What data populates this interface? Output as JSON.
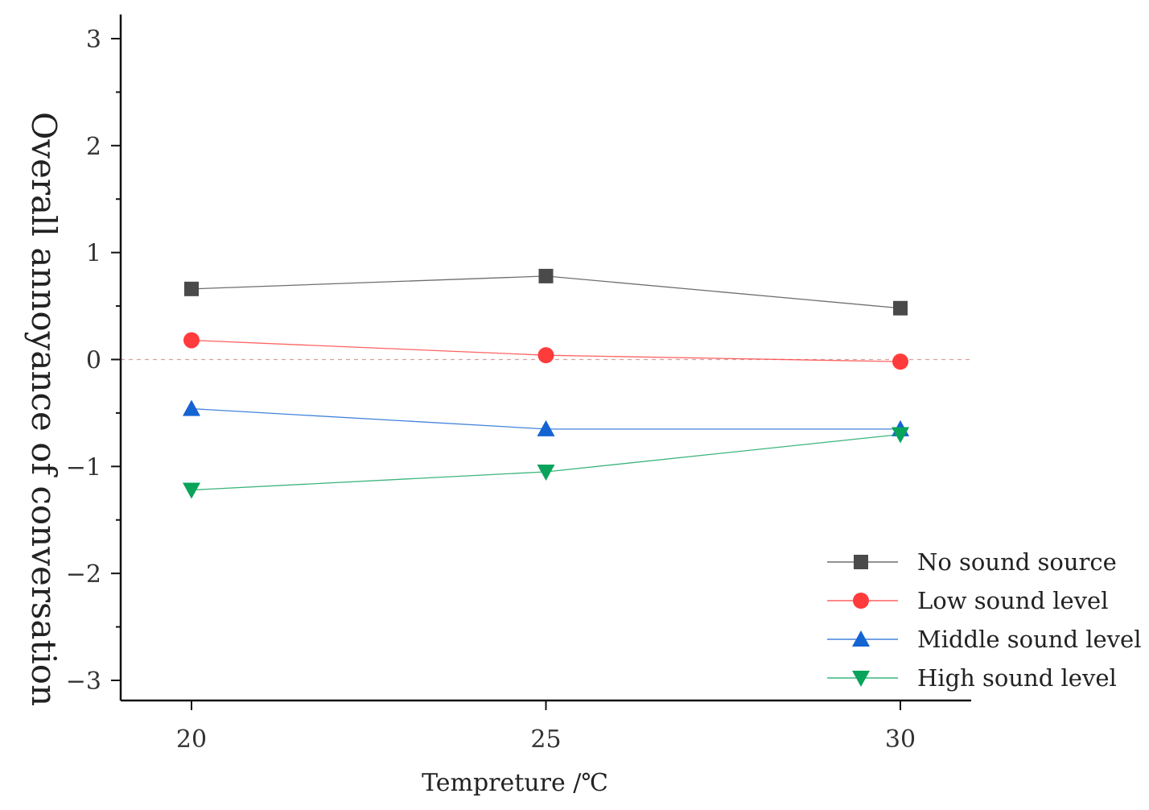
{
  "chart_data": {
    "type": "line",
    "title": "",
    "xlabel": "Tempreture /℃",
    "ylabel": "Overall annoyance of conversation",
    "x": [
      20,
      25,
      30
    ],
    "x_ticks": [
      "20",
      "25",
      "30"
    ],
    "xlim": [
      19,
      31
    ],
    "ylim": [
      -3.2,
      3.2
    ],
    "y_ticks": [
      "3",
      "2",
      "1",
      "0",
      "−1",
      "−2",
      "−3"
    ],
    "y_tick_values": [
      3,
      2,
      1,
      0,
      -1,
      -2,
      -3
    ],
    "grid": false,
    "reference_line": 0,
    "legend_position": "bottom-right",
    "series": [
      {
        "name": "No sound source",
        "values": [
          0.66,
          0.78,
          0.48
        ],
        "color": "#4a4a4a",
        "marker": "square"
      },
      {
        "name": "Low sound level",
        "values": [
          0.18,
          0.04,
          -0.02
        ],
        "color": "#ff3b3b",
        "marker": "circle"
      },
      {
        "name": "Middle sound level",
        "values": [
          -0.46,
          -0.65,
          -0.65
        ],
        "color": "#1464d2",
        "marker": "triangle-up"
      },
      {
        "name": "High sound level",
        "values": [
          -1.22,
          -1.05,
          -0.7
        ],
        "color": "#0aa35a",
        "marker": "triangle-down"
      }
    ]
  }
}
